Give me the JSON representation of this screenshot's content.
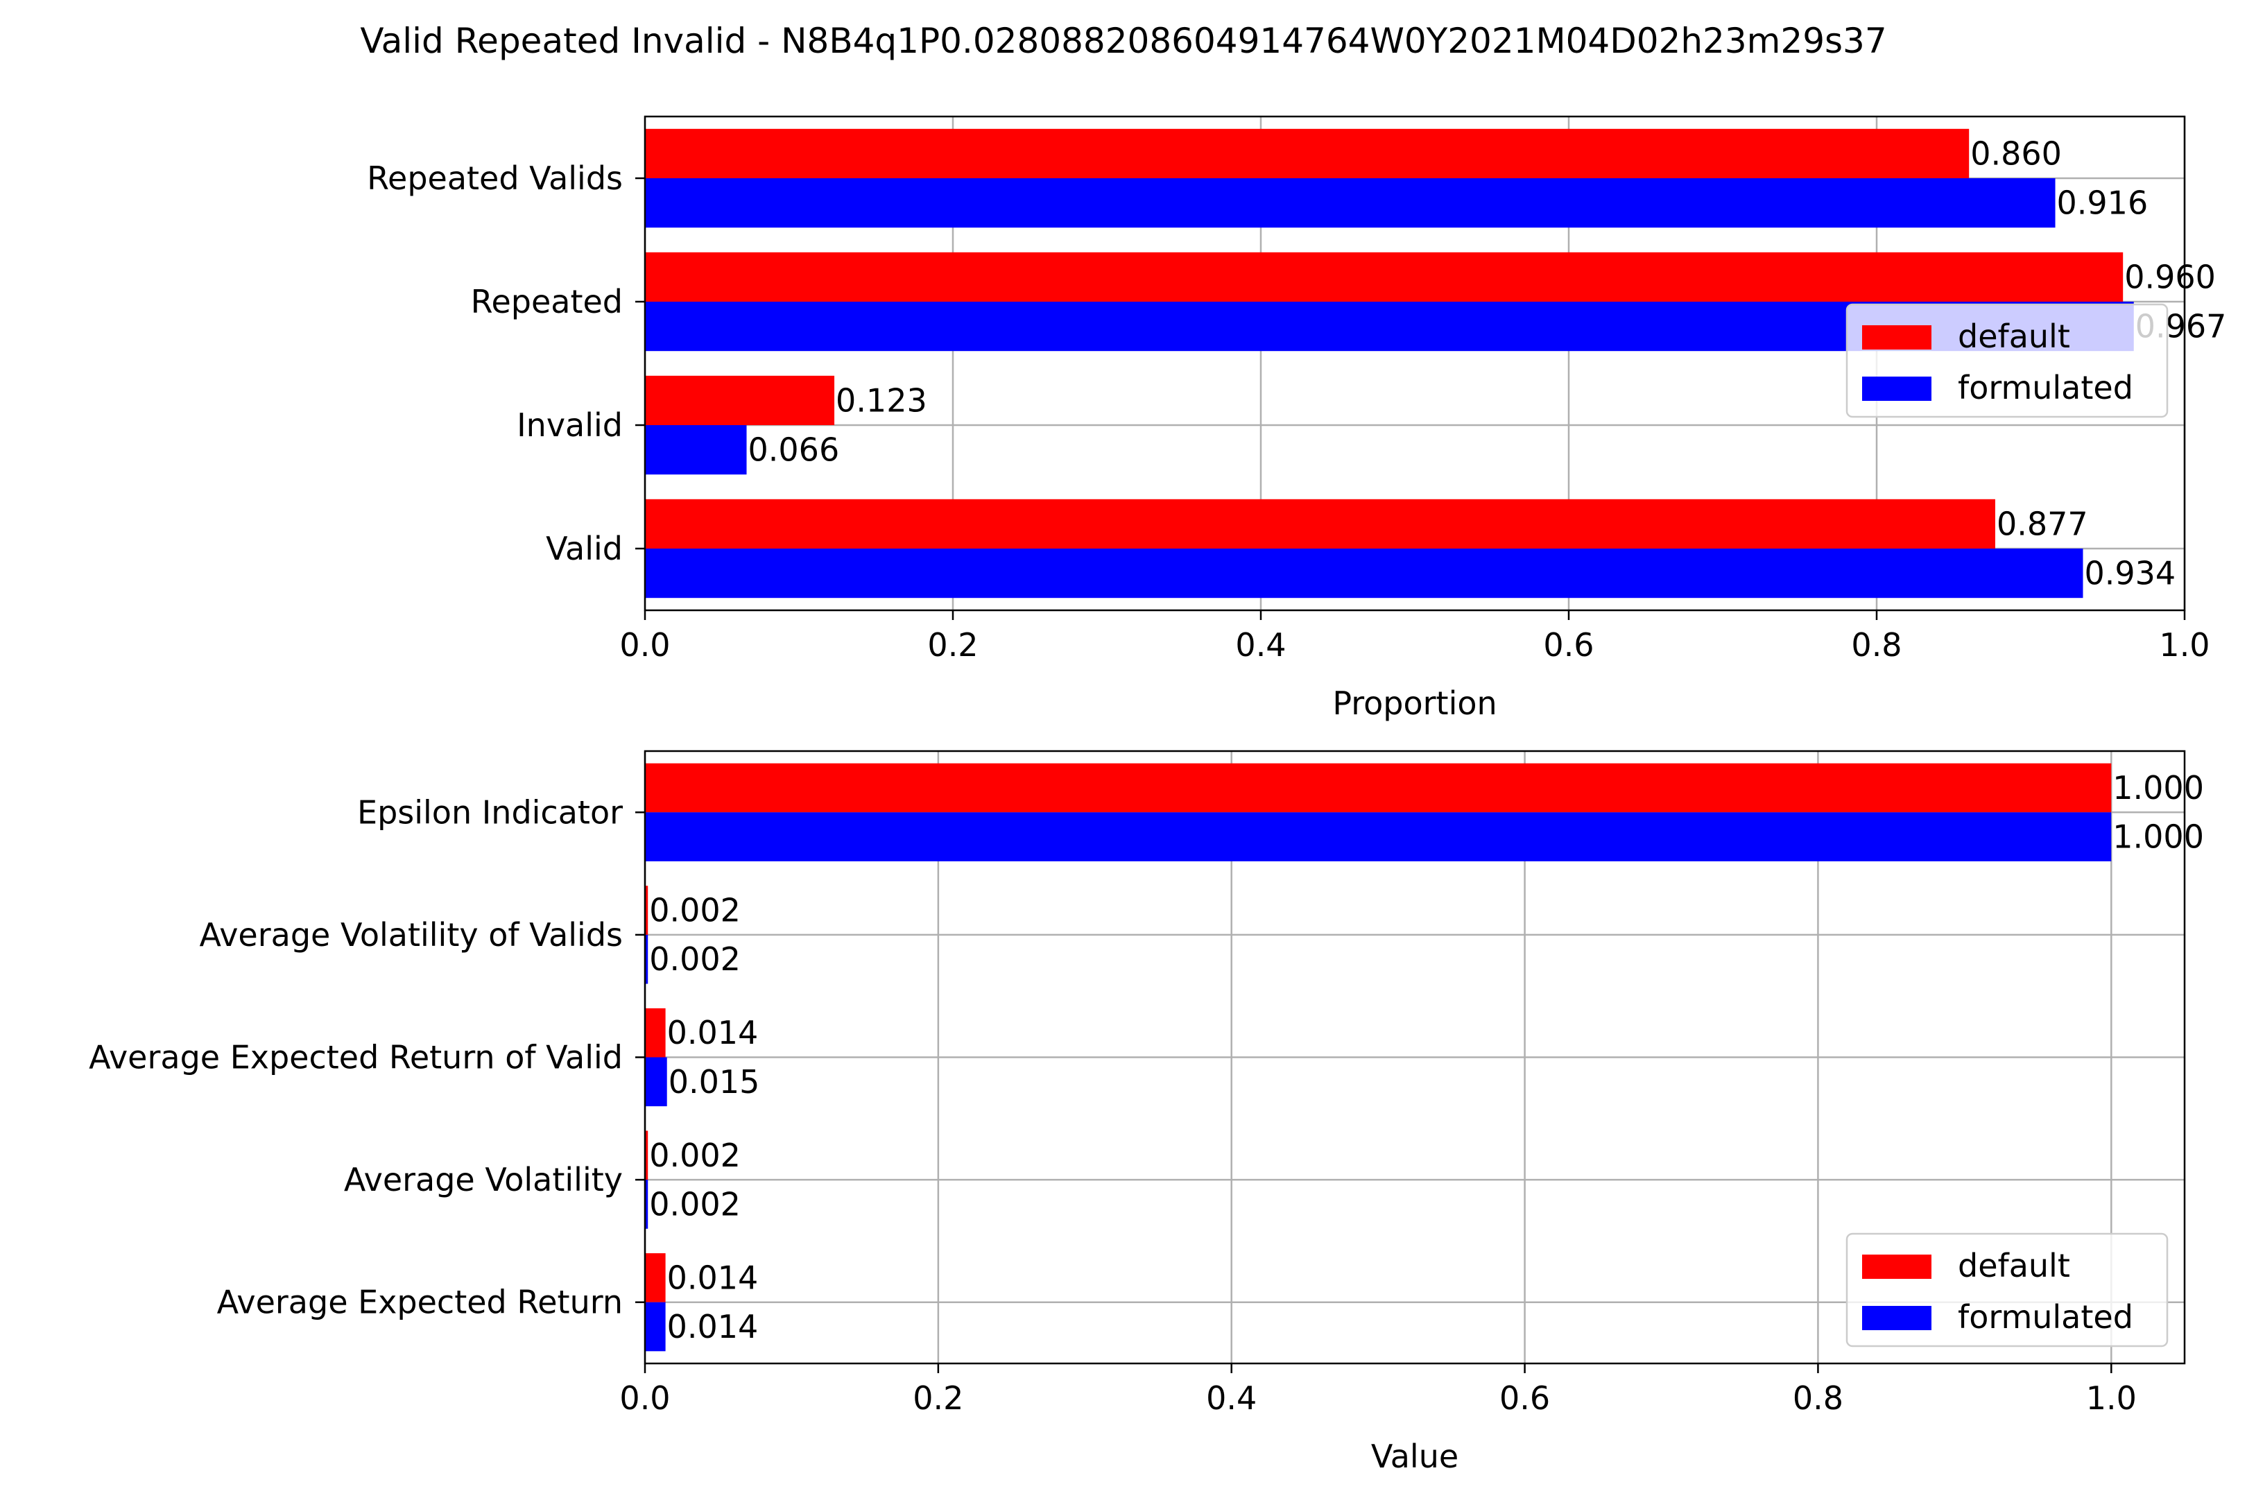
{
  "figure": {
    "title": "Valid Repeated Invalid - N8B4q1P0.028088208604914764W0Y2021M04D02h23m29s37"
  },
  "colors": {
    "default": "#ff0000",
    "formulated": "#0000ff",
    "grid": "#b0b0b0"
  },
  "chart_data": [
    {
      "type": "bar",
      "orientation": "horizontal",
      "categories": [
        "Valid",
        "Invalid",
        "Repeated",
        "Repeated Valids"
      ],
      "series": [
        {
          "name": "default",
          "color": "#ff0000",
          "values": [
            0.877,
            0.123,
            0.96,
            0.86
          ]
        },
        {
          "name": "formulated",
          "color": "#0000ff",
          "values": [
            0.934,
            0.066,
            0.967,
            0.916
          ]
        }
      ],
      "xlabel": "Proportion",
      "xlim": [
        0,
        1.0
      ],
      "xticks": [
        "0.0",
        "0.2",
        "0.4",
        "0.6",
        "0.8",
        "1.0"
      ],
      "grid": true,
      "legend": "right",
      "value_format": 3
    },
    {
      "type": "bar",
      "orientation": "horizontal",
      "categories": [
        "Average Expected Return",
        "Average Volatility",
        "Average Expected Return of Valid",
        "Average Volatility of Valids",
        "Epsilon Indicator"
      ],
      "series": [
        {
          "name": "default",
          "color": "#ff0000",
          "values": [
            0.014,
            0.002,
            0.014,
            0.002,
            1.0
          ]
        },
        {
          "name": "formulated",
          "color": "#0000ff",
          "values": [
            0.014,
            0.002,
            0.015,
            0.002,
            1.0
          ]
        }
      ],
      "xlabel": "Value",
      "xlim": [
        0,
        1.05
      ],
      "xticks": [
        "0.0",
        "0.2",
        "0.4",
        "0.6",
        "0.8",
        "1.0"
      ],
      "grid": true,
      "legend": "lower right",
      "value_format": 3
    }
  ]
}
